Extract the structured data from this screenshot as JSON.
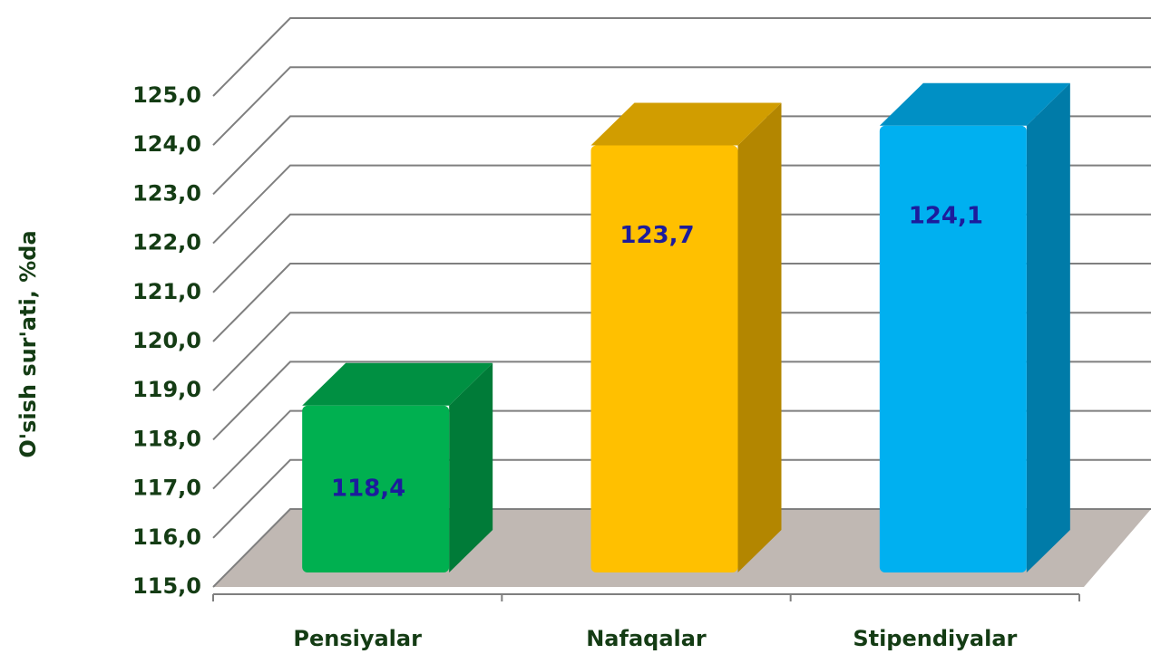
{
  "chart_data": {
    "type": "bar3d",
    "y_label": "O'sish sur'ati, %da",
    "categories": [
      "Pensiyalar",
      "Nafaqalar",
      "Stipendiyalar"
    ],
    "values": [
      118.4,
      123.7,
      124.1
    ],
    "value_labels": [
      "118,4",
      "123,7",
      "124,1"
    ],
    "colors": [
      "#00b050",
      "#ffc000",
      "#00b0f0"
    ],
    "ylim": [
      115,
      125
    ],
    "yticks": [
      {
        "value": 115,
        "label": "115,0"
      },
      {
        "value": 116,
        "label": "116,0"
      },
      {
        "value": 117,
        "label": "117,0"
      },
      {
        "value": 118,
        "label": "118,0"
      },
      {
        "value": 119,
        "label": "119,0"
      },
      {
        "value": 120,
        "label": "120,0"
      },
      {
        "value": 121,
        "label": "121,0"
      },
      {
        "value": 122,
        "label": "122,0"
      },
      {
        "value": 123,
        "label": "123,0"
      },
      {
        "value": 124,
        "label": "124,0"
      },
      {
        "value": 125,
        "label": "125,0"
      }
    ],
    "grid": true
  }
}
